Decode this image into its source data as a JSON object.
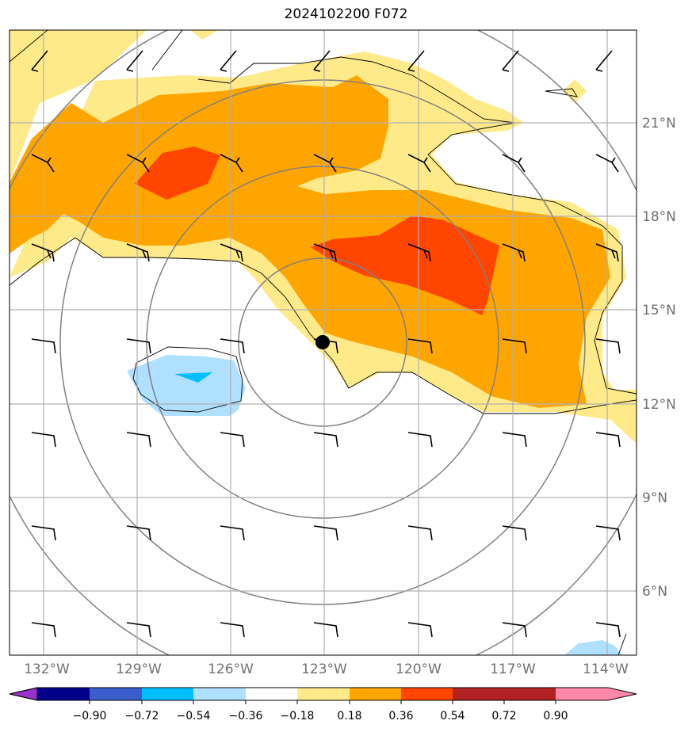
{
  "title": "2024102200 F072",
  "lat_labels": [
    "21°N",
    "18°N",
    "15°N",
    "12°N",
    "9°N",
    "6°N"
  ],
  "lon_labels": [
    "132°W",
    "129°W",
    "126°W",
    "123°W",
    "120°W",
    "117°W",
    "114°W"
  ],
  "colorbar": {
    "labels": [
      "−0.90",
      "−0.72",
      "−0.54",
      "−0.36",
      "−0.18",
      "0.18",
      "0.36",
      "0.54",
      "0.72",
      "0.90"
    ],
    "colors": [
      "#9932cc",
      "#00008b",
      "#3a5fcd",
      "#00bfff",
      "#b0e0ff",
      "#ffffff",
      "#ffea8a",
      "#ffa500",
      "#ff4500",
      "#b22222",
      "#ff88aa"
    ]
  },
  "fills": {
    "light_yellow": "#ffea8a",
    "orange": "#ffa500",
    "red_orange": "#ff4500",
    "light_blue": "#b0e0ff",
    "deep_sky": "#00bfff"
  },
  "storm_center": {
    "lon": "123°W",
    "lat": "14°N"
  }
}
